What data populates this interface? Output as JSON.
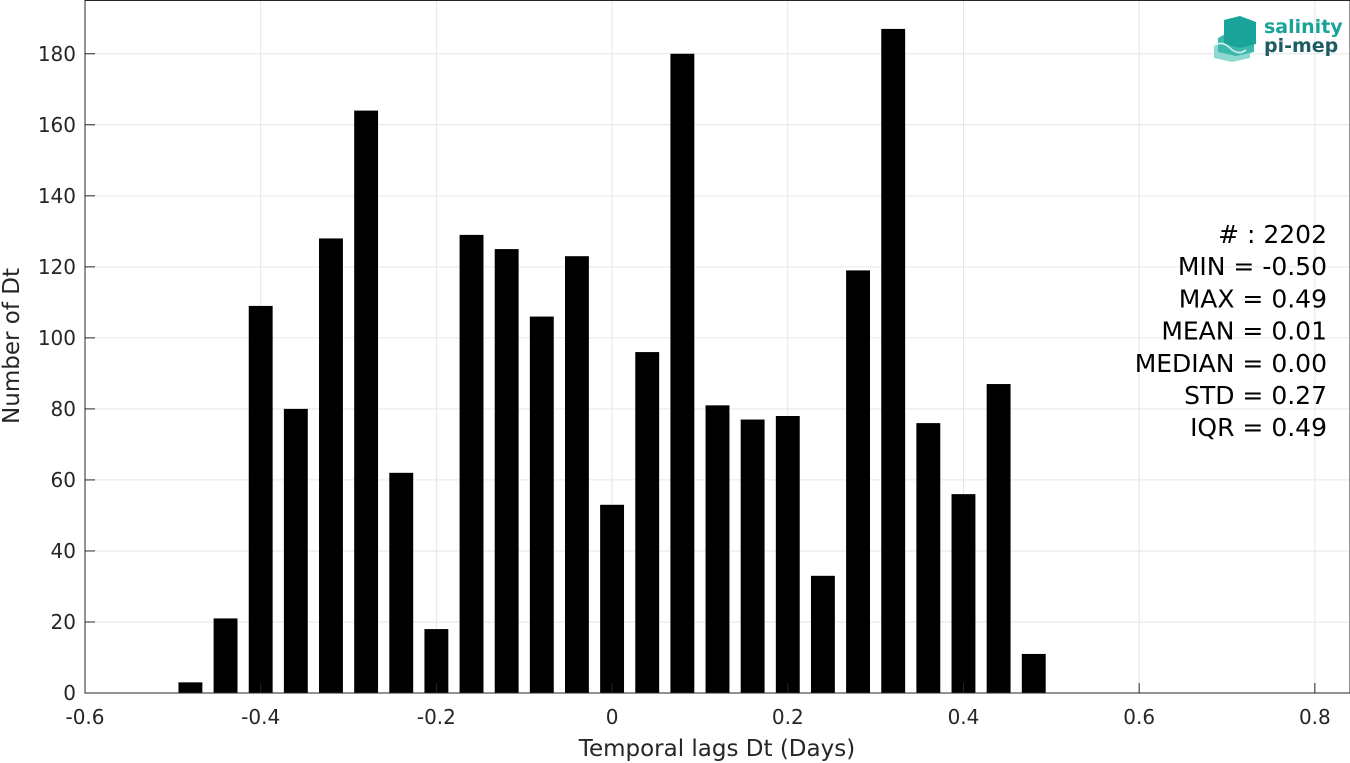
{
  "chart_data": {
    "type": "bar",
    "xlabel": "Temporal lags Dt (Days)",
    "ylabel": "Number of Dt",
    "xlim": [
      -0.6,
      0.84
    ],
    "ylim": [
      0,
      195
    ],
    "x_ticks": [
      "-0.6",
      "-0.4",
      "-0.2",
      "0",
      "0.2",
      "0.4",
      "0.6",
      "0.8"
    ],
    "x_tick_values": [
      -0.6,
      -0.4,
      -0.2,
      0,
      0.2,
      0.4,
      0.6,
      0.8
    ],
    "y_ticks": [
      "0",
      "20",
      "40",
      "60",
      "80",
      "100",
      "120",
      "140",
      "160",
      "180"
    ],
    "y_tick_values": [
      0,
      20,
      40,
      60,
      80,
      100,
      120,
      140,
      160,
      180
    ],
    "grid": true,
    "bar_color": "#000000",
    "bin_width": 0.04,
    "x": [
      -0.48,
      -0.44,
      -0.4,
      -0.36,
      -0.32,
      -0.28,
      -0.24,
      -0.2,
      -0.16,
      -0.12,
      -0.08,
      -0.04,
      0.0,
      0.04,
      0.08,
      0.12,
      0.16,
      0.2,
      0.24,
      0.28,
      0.32,
      0.36,
      0.4,
      0.44,
      0.48
    ],
    "values": [
      3,
      21,
      109,
      80,
      128,
      164,
      62,
      18,
      129,
      125,
      106,
      123,
      53,
      96,
      180,
      81,
      77,
      78,
      33,
      119,
      187,
      76,
      56,
      87,
      11
    ]
  },
  "stats": [
    "# : 2202",
    "MIN = -0.50",
    "MAX =  0.49",
    "MEAN = 0.01",
    "MEDIAN = 0.00",
    "STD = 0.27",
    "IQR = 0.49"
  ],
  "logo": {
    "line1": "salinity",
    "line2": "pi-mep",
    "color1": "#1aa398",
    "color2": "#1d5d63"
  }
}
